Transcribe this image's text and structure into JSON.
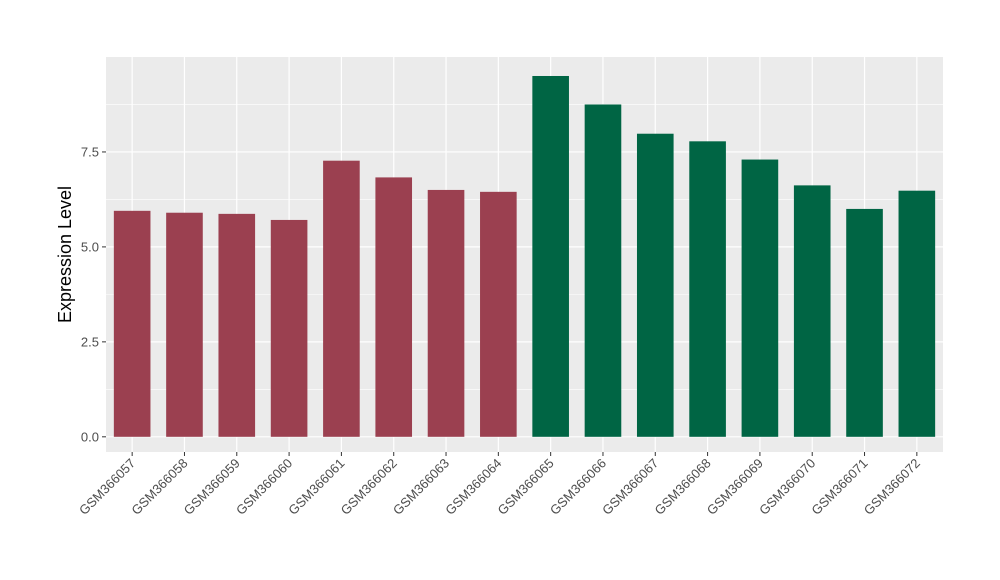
{
  "chart_data": {
    "type": "bar",
    "title": "",
    "xlabel": "",
    "ylabel": "Expression Level",
    "ylim": [
      -0.4,
      10.0
    ],
    "yticks": [
      0.0,
      2.5,
      5.0,
      7.5
    ],
    "ytick_labels": [
      "0.0",
      "2.5",
      "5.0",
      "7.5"
    ],
    "grid": true,
    "legend": "none",
    "colors": {
      "group1": "#9b4050",
      "group2": "#006544",
      "panel_bg": "#ebebeb",
      "grid": "#ffffff"
    },
    "categories": [
      "GSM366057",
      "GSM366058",
      "GSM366059",
      "GSM366060",
      "GSM366061",
      "GSM366062",
      "GSM366063",
      "GSM366064",
      "GSM366065",
      "GSM366066",
      "GSM366067",
      "GSM366068",
      "GSM366069",
      "GSM366070",
      "GSM366071",
      "GSM366072"
    ],
    "values": [
      5.95,
      5.9,
      5.87,
      5.71,
      7.27,
      6.83,
      6.5,
      6.45,
      9.5,
      8.75,
      7.98,
      7.78,
      7.3,
      6.62,
      6.0,
      6.48
    ],
    "groups": [
      1,
      1,
      1,
      1,
      1,
      1,
      1,
      1,
      2,
      2,
      2,
      2,
      2,
      2,
      2,
      2
    ]
  }
}
